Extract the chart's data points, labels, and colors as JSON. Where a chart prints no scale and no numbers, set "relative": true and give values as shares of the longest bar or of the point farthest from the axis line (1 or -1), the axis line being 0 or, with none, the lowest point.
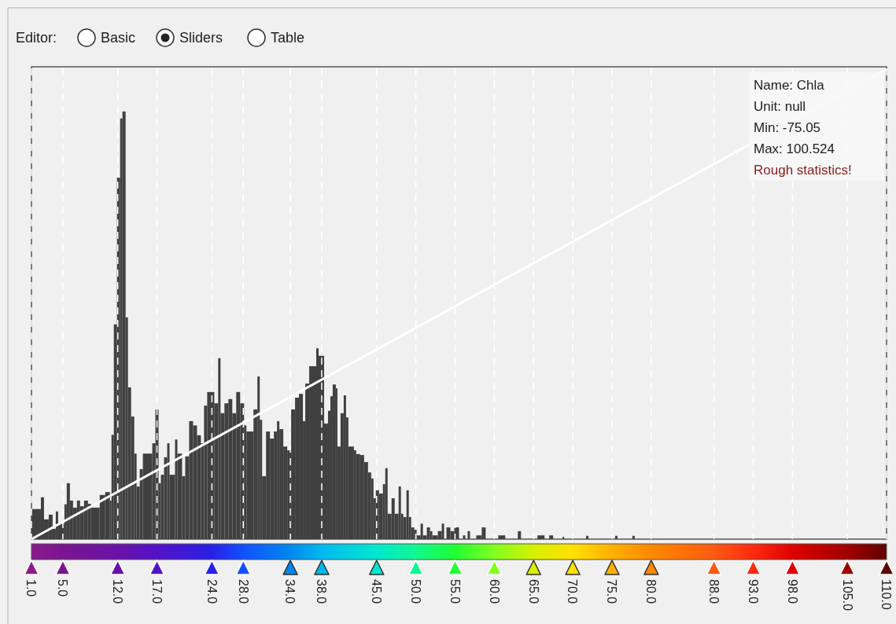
{
  "chart_data": {
    "type": "histogram",
    "relative": true,
    "color": "#404040",
    "bins": [
      1.0,
      2.2,
      2.6,
      3.2,
      3.7,
      4.1,
      4.4,
      5.2,
      5.5,
      5.9,
      6.3,
      6.8,
      7.2,
      7.7,
      8.2,
      8.6,
      9.7,
      10.4,
      11.0,
      11.2,
      11.5,
      11.9,
      12.3,
      12.6,
      13.0,
      13.3,
      13.7,
      14.1,
      14.4,
      14.8,
      15.2,
      16.4,
      16.8,
      17.2,
      17.5,
      17.9,
      18.3,
      18.6,
      19.3,
      19.6,
      20.2,
      20.6,
      21.1,
      21.6,
      22.1,
      22.6,
      23.0,
      23.4,
      24.3,
      24.8,
      25.1,
      25.6,
      26.1,
      26.6,
      27.1,
      27.6,
      28.1,
      28.4,
      29.3,
      29.8,
      30.1,
      30.4,
      30.9,
      31.4,
      31.9,
      32.3,
      32.6,
      33.1,
      33.6,
      34.1,
      34.6,
      35.1,
      35.6,
      35.9,
      36.4,
      37.3,
      37.6,
      38.3,
      38.8,
      39.1,
      39.4,
      39.8,
      40.0,
      40.4,
      40.8,
      41.1,
      41.4,
      42.1,
      42.4,
      42.9,
      43.4,
      43.9,
      44.3,
      44.6,
      44.9,
      45.3,
      45.8,
      46.1,
      46.4,
      46.9,
      47.3,
      47.8,
      48.1,
      48.4,
      48.8,
      49.1,
      49.4,
      49.8,
      50.1,
      50.6,
      50.9,
      51.4,
      51.8,
      52.1,
      52.8,
      53.3,
      53.6,
      53.9,
      54.4,
      54.9,
      55.5,
      56.0,
      56.3,
      56.6,
      56.9,
      57.7,
      58.4,
      58.9,
      60.5,
      61.4,
      63.0,
      63.4,
      65.5,
      66.4,
      67.0,
      67.5,
      68.7,
      68.9,
      71.7,
      72.0,
      75.4,
      75.7,
      77.6,
      77.9
    ],
    "values": [
      0.064,
      0.089,
      0.042,
      0.052,
      0.022,
      0.059,
      0.033,
      0.074,
      0.119,
      0.082,
      0.067,
      0.082,
      0.07,
      0.082,
      0.075,
      0.067,
      0.094,
      0.1,
      0.082,
      0.222,
      0.457,
      0.769,
      0.895,
      0.91,
      0.472,
      0.323,
      0.261,
      0.182,
      0.112,
      0.149,
      0.182,
      0.204,
      0.276,
      0.119,
      0.137,
      0.174,
      0.204,
      0.137,
      0.212,
      0.182,
      0.134,
      0.176,
      0.251,
      0.242,
      0.221,
      0.204,
      0.284,
      0.313,
      0.289,
      0.385,
      0.268,
      0.289,
      0.298,
      0.268,
      0.313,
      0.289,
      0.242,
      0.229,
      0.276,
      0.346,
      0.254,
      0.134,
      0.229,
      0.214,
      0.229,
      0.251,
      0.234,
      0.197,
      0.189,
      0.276,
      0.301,
      0.309,
      0.251,
      0.331,
      0.368,
      0.406,
      0.39,
      0.246,
      0.273,
      0.304,
      0.329,
      0.321,
      0.197,
      0.268,
      0.306,
      0.259,
      0.197,
      0.189,
      0.181,
      0.179,
      0.164,
      0.142,
      0.129,
      0.087,
      0.104,
      0.097,
      0.117,
      0.151,
      0.054,
      0.087,
      0.054,
      0.112,
      0.054,
      0.047,
      0.104,
      0.047,
      0.025,
      0.02,
      0.008,
      0.033,
      0.008,
      0.025,
      0.017,
      0.008,
      0.017,
      0.033,
      0,
      0.025,
      0.017,
      0.025,
      0,
      0.008,
      0,
      0.017,
      0,
      0.008,
      0.025,
      0,
      0.008,
      0,
      0.017,
      0,
      0.008,
      0,
      0.008,
      0,
      0.005,
      0,
      0.007,
      0,
      0.007,
      0,
      0.007
    ],
    "series": [
      {
        "type": "line",
        "color": "#ffffff",
        "x": [
          1.0,
          110.0
        ],
        "values": [
          0,
          1
        ]
      }
    ],
    "xlim": [
      1.0,
      110.0
    ],
    "xticks": [
      {
        "value": 1,
        "label": "1.0"
      },
      {
        "value": 5,
        "label": "5.0"
      },
      {
        "value": 12,
        "label": "12.0"
      },
      {
        "value": 17,
        "label": "17.0"
      },
      {
        "value": 24,
        "label": "24.0"
      },
      {
        "value": 28,
        "label": "28.0"
      },
      {
        "value": 34,
        "label": "34.0"
      },
      {
        "value": 38,
        "label": "38.0"
      },
      {
        "value": 45,
        "label": "45.0"
      },
      {
        "value": 50,
        "label": "50.0"
      },
      {
        "value": 55,
        "label": "55.0"
      },
      {
        "value": 60,
        "label": "60.0"
      },
      {
        "value": 65,
        "label": "65.0"
      },
      {
        "value": 70,
        "label": "70.0"
      },
      {
        "value": 75,
        "label": "75.0"
      },
      {
        "value": 80,
        "label": "80.0"
      },
      {
        "value": 88,
        "label": "88.0"
      },
      {
        "value": 93,
        "label": "93.0"
      },
      {
        "value": 98,
        "label": "98.0"
      },
      {
        "value": 105,
        "label": "105.0"
      },
      {
        "value": 110,
        "label": "110.0"
      }
    ],
    "grid": "x",
    "tick_labels": "x",
    "annotations": [
      "Editor:",
      "Basic",
      "Sliders",
      "Table",
      "Name: Chla",
      "Unit: null",
      "Min: -75.05",
      "Max: 100.524",
      "Rough statistics!"
    ]
  }
}
